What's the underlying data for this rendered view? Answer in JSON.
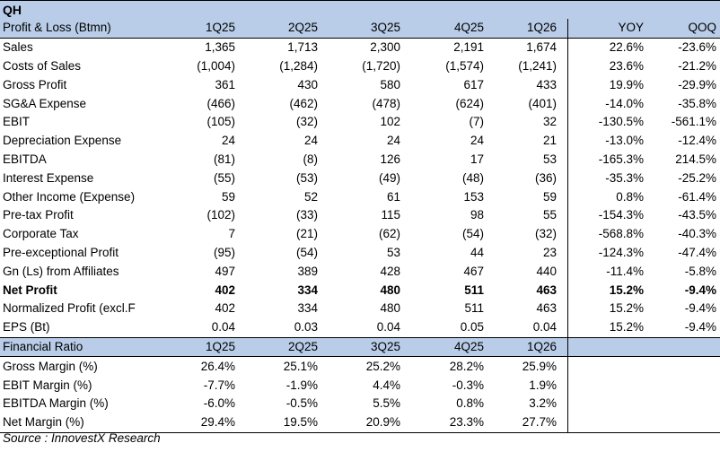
{
  "title": "QH",
  "header": [
    "Profit & Loss (Btmn)",
    "1Q25",
    "2Q25",
    "3Q25",
    "4Q25",
    "1Q26",
    "YOY",
    "QOQ"
  ],
  "rows": [
    {
      "label": "Sales",
      "values": [
        "1,365",
        "1,713",
        "2,300",
        "2,191",
        "1,674",
        "22.6%",
        "-23.6%"
      ],
      "bold": false
    },
    {
      "label": "Costs of Sales",
      "values": [
        "(1,004)",
        "(1,284)",
        "(1,720)",
        "(1,574)",
        "(1,241)",
        "23.6%",
        "-21.2%"
      ],
      "bold": false
    },
    {
      "label": "Gross Profit",
      "values": [
        "361",
        "430",
        "580",
        "617",
        "433",
        "19.9%",
        "-29.9%"
      ],
      "bold": false
    },
    {
      "label": "SG&A Expense",
      "values": [
        "(466)",
        "(462)",
        "(478)",
        "(624)",
        "(401)",
        "-14.0%",
        "-35.8%"
      ],
      "bold": false
    },
    {
      "label": "EBIT",
      "values": [
        "(105)",
        "(32)",
        "102",
        "(7)",
        "32",
        "-130.5%",
        "-561.1%"
      ],
      "bold": false
    },
    {
      "label": "Depreciation Expense",
      "values": [
        "24",
        "24",
        "24",
        "24",
        "21",
        "-13.0%",
        "-12.4%"
      ],
      "bold": false
    },
    {
      "label": "EBITDA",
      "values": [
        "(81)",
        "(8)",
        "126",
        "17",
        "53",
        "-165.3%",
        "214.5%"
      ],
      "bold": false
    },
    {
      "label": "Interest Expense",
      "values": [
        "(55)",
        "(53)",
        "(49)",
        "(48)",
        "(36)",
        "-35.3%",
        "-25.2%"
      ],
      "bold": false
    },
    {
      "label": "Other Income (Expense)",
      "values": [
        "59",
        "52",
        "61",
        "153",
        "59",
        "0.8%",
        "-61.4%"
      ],
      "bold": false
    },
    {
      "label": "Pre-tax Profit",
      "values": [
        "(102)",
        "(33)",
        "115",
        "98",
        "55",
        "-154.3%",
        "-43.5%"
      ],
      "bold": false
    },
    {
      "label": "Corporate Tax",
      "values": [
        "7",
        "(21)",
        "(62)",
        "(54)",
        "(32)",
        "-568.8%",
        "-40.3%"
      ],
      "bold": false
    },
    {
      "label": "Pre-exceptional Profit",
      "values": [
        "(95)",
        "(54)",
        "53",
        "44",
        "23",
        "-124.3%",
        "-47.4%"
      ],
      "bold": false
    },
    {
      "label": "Gn (Ls) from Affiliates",
      "values": [
        "497",
        "389",
        "428",
        "467",
        "440",
        "-11.4%",
        "-5.8%"
      ],
      "bold": false
    },
    {
      "label": "Net Profit",
      "values": [
        "402",
        "334",
        "480",
        "511",
        "463",
        "15.2%",
        "-9.4%"
      ],
      "bold": true
    },
    {
      "label": "Normalized Profit (excl.F",
      "values": [
        "402",
        "334",
        "480",
        "511",
        "463",
        "15.2%",
        "-9.4%"
      ],
      "bold": false
    },
    {
      "label": "EPS (Bt)",
      "values": [
        "0.04",
        "0.03",
        "0.04",
        "0.05",
        "0.04",
        "15.2%",
        "-9.4%"
      ],
      "bold": false
    }
  ],
  "ratio_header": [
    "Financial Ratio",
    "1Q25",
    "2Q25",
    "3Q25",
    "4Q25",
    "1Q26"
  ],
  "ratio_rows": [
    {
      "label": "Gross Margin (%)",
      "values": [
        "26.4%",
        "25.1%",
        "25.2%",
        "28.2%",
        "25.9%"
      ]
    },
    {
      "label": "EBIT Margin (%)",
      "values": [
        "-7.7%",
        "-1.9%",
        "4.4%",
        "-0.3%",
        "1.9%"
      ]
    },
    {
      "label": "EBITDA Margin (%)",
      "values": [
        "-6.0%",
        "-0.5%",
        "5.5%",
        "0.8%",
        "3.2%"
      ]
    },
    {
      "label": "Net Margin (%)",
      "values": [
        "29.4%",
        "19.5%",
        "20.9%",
        "23.3%",
        "27.7%"
      ]
    }
  ],
  "source": "Source : InnovestX Research"
}
